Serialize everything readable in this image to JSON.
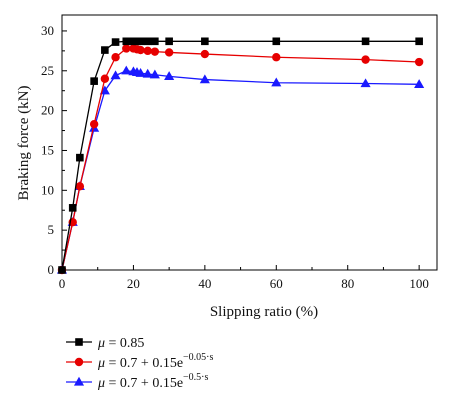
{
  "chart_data": {
    "type": "line",
    "xlabel": "Slipping ratio (%)",
    "ylabel": "Braking force (kN)",
    "xlim": [
      0,
      105
    ],
    "ylim": [
      0,
      32
    ],
    "x_ticks": [
      0,
      20,
      40,
      60,
      80,
      100
    ],
    "y_ticks": [
      0,
      5,
      10,
      15,
      20,
      25,
      30
    ],
    "grid": false,
    "legend_position": "bottom",
    "series": [
      {
        "name": "μ = 0.85",
        "name_parts": {
          "mu": "μ",
          "eq": " = 0.85",
          "exp": ""
        },
        "color": "#000000",
        "marker": "square",
        "x": [
          0,
          3,
          5,
          9,
          12,
          15,
          18,
          20,
          21,
          22,
          24,
          26,
          30,
          40,
          60,
          85,
          100
        ],
        "y": [
          0,
          7.8,
          14.1,
          23.7,
          27.6,
          28.6,
          28.7,
          28.7,
          28.7,
          28.7,
          28.7,
          28.7,
          28.7,
          28.7,
          28.7,
          28.7,
          28.7
        ]
      },
      {
        "name": "μ = 0.7 + 0.15e^(−0.05·s)",
        "name_parts": {
          "mu": "μ",
          "eq": " = 0.7 + 0.15e",
          "exp": "−0.05·s"
        },
        "color": "#e60000",
        "marker": "circle",
        "x": [
          0,
          3,
          5,
          9,
          12,
          15,
          18,
          20,
          21,
          22,
          24,
          26,
          30,
          40,
          60,
          85,
          100
        ],
        "y": [
          0,
          6.0,
          10.5,
          18.3,
          24.0,
          26.7,
          27.8,
          27.8,
          27.7,
          27.6,
          27.5,
          27.4,
          27.3,
          27.1,
          26.7,
          26.4,
          26.1
        ]
      },
      {
        "name": "μ = 0.7 + 0.15e^(−0.5·s)",
        "name_parts": {
          "mu": "μ",
          "eq": " = 0.7 + 0.15e",
          "exp": "−0.5·s"
        },
        "color": "#1a1aff",
        "marker": "triangle",
        "x": [
          0,
          3,
          5,
          9,
          12,
          15,
          18,
          20,
          21,
          22,
          24,
          26,
          30,
          40,
          60,
          85,
          100
        ],
        "y": [
          0,
          6.0,
          10.5,
          17.8,
          22.5,
          24.4,
          25.0,
          24.9,
          24.8,
          24.7,
          24.6,
          24.5,
          24.3,
          23.9,
          23.5,
          23.4,
          23.3
        ]
      }
    ]
  }
}
